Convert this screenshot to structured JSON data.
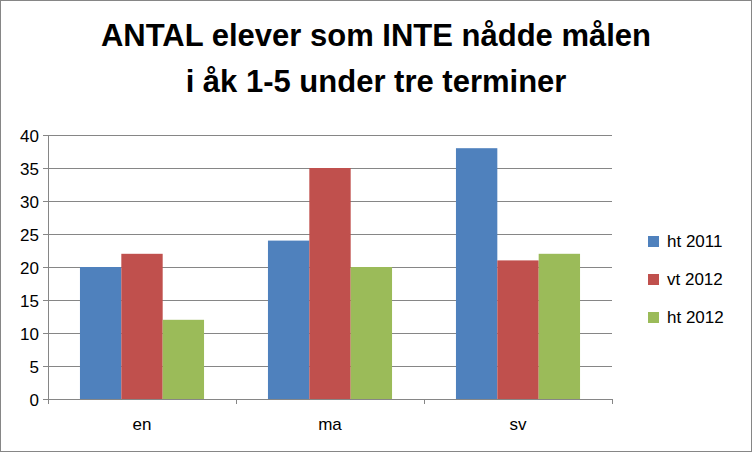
{
  "chart_data": {
    "type": "bar",
    "title": "ANTAL elever som INTE nådde målen\ni åk 1-5 under tre terminer",
    "categories": [
      "en",
      "ma",
      "sv"
    ],
    "series": [
      {
        "name": "ht 2011",
        "color": "#4f81bd",
        "values": [
          20,
          24,
          38
        ]
      },
      {
        "name": "vt 2012",
        "color": "#c0504d",
        "values": [
          22,
          35,
          21
        ]
      },
      {
        "name": "ht 2012",
        "color": "#9bbb59",
        "values": [
          12,
          20,
          22
        ]
      }
    ],
    "ylim": [
      0,
      40
    ],
    "yticks": [
      0,
      5,
      10,
      15,
      20,
      25,
      30,
      35,
      40
    ],
    "grid": true,
    "legend": "right"
  }
}
